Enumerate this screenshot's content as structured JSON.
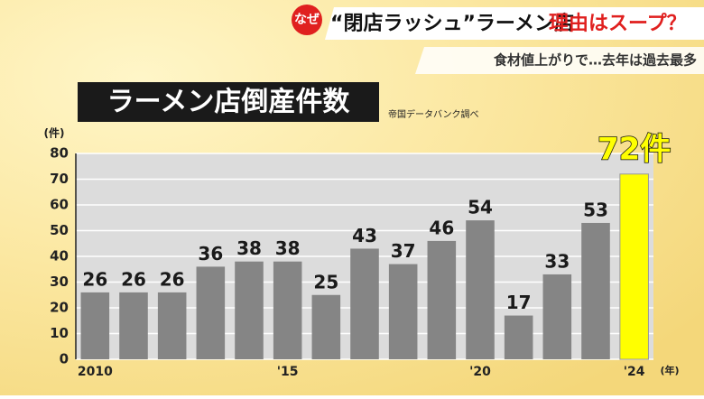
{
  "chart_data": {
    "type": "bar",
    "badge": "なぜ",
    "headline": "“閉店ラッシュ”ラーメン店",
    "headline_emphasis": "理由はスープ？",
    "subtitle": "食材値上がりで…去年は過去最多",
    "title": "ラーメン店倒産件数",
    "source": "帝国データバンク調べ",
    "y_unit": "(件)",
    "x_unit": "(年)",
    "categories": [
      "2010",
      null,
      null,
      null,
      null,
      "'15",
      null,
      null,
      null,
      null,
      "'20",
      null,
      null,
      null,
      "'24"
    ],
    "values": [
      26,
      26,
      26,
      36,
      38,
      38,
      25,
      43,
      37,
      46,
      54,
      17,
      33,
      53,
      72
    ],
    "value_labels": [
      "26",
      "26",
      "26",
      "36",
      "38",
      "38",
      "25",
      "43",
      "37",
      "46",
      "54",
      "17",
      "33",
      "53",
      "72件"
    ],
    "colors": [
      "#858585",
      "#858585",
      "#858585",
      "#858585",
      "#858585",
      "#858585",
      "#858585",
      "#858585",
      "#858585",
      "#858585",
      "#858585",
      "#858585",
      "#858585",
      "#858585",
      "#ffff00"
    ],
    "ylim": [
      0,
      80
    ],
    "yticks": [
      0,
      10,
      20,
      30,
      40,
      50,
      60,
      70,
      80
    ],
    "grid": true
  }
}
